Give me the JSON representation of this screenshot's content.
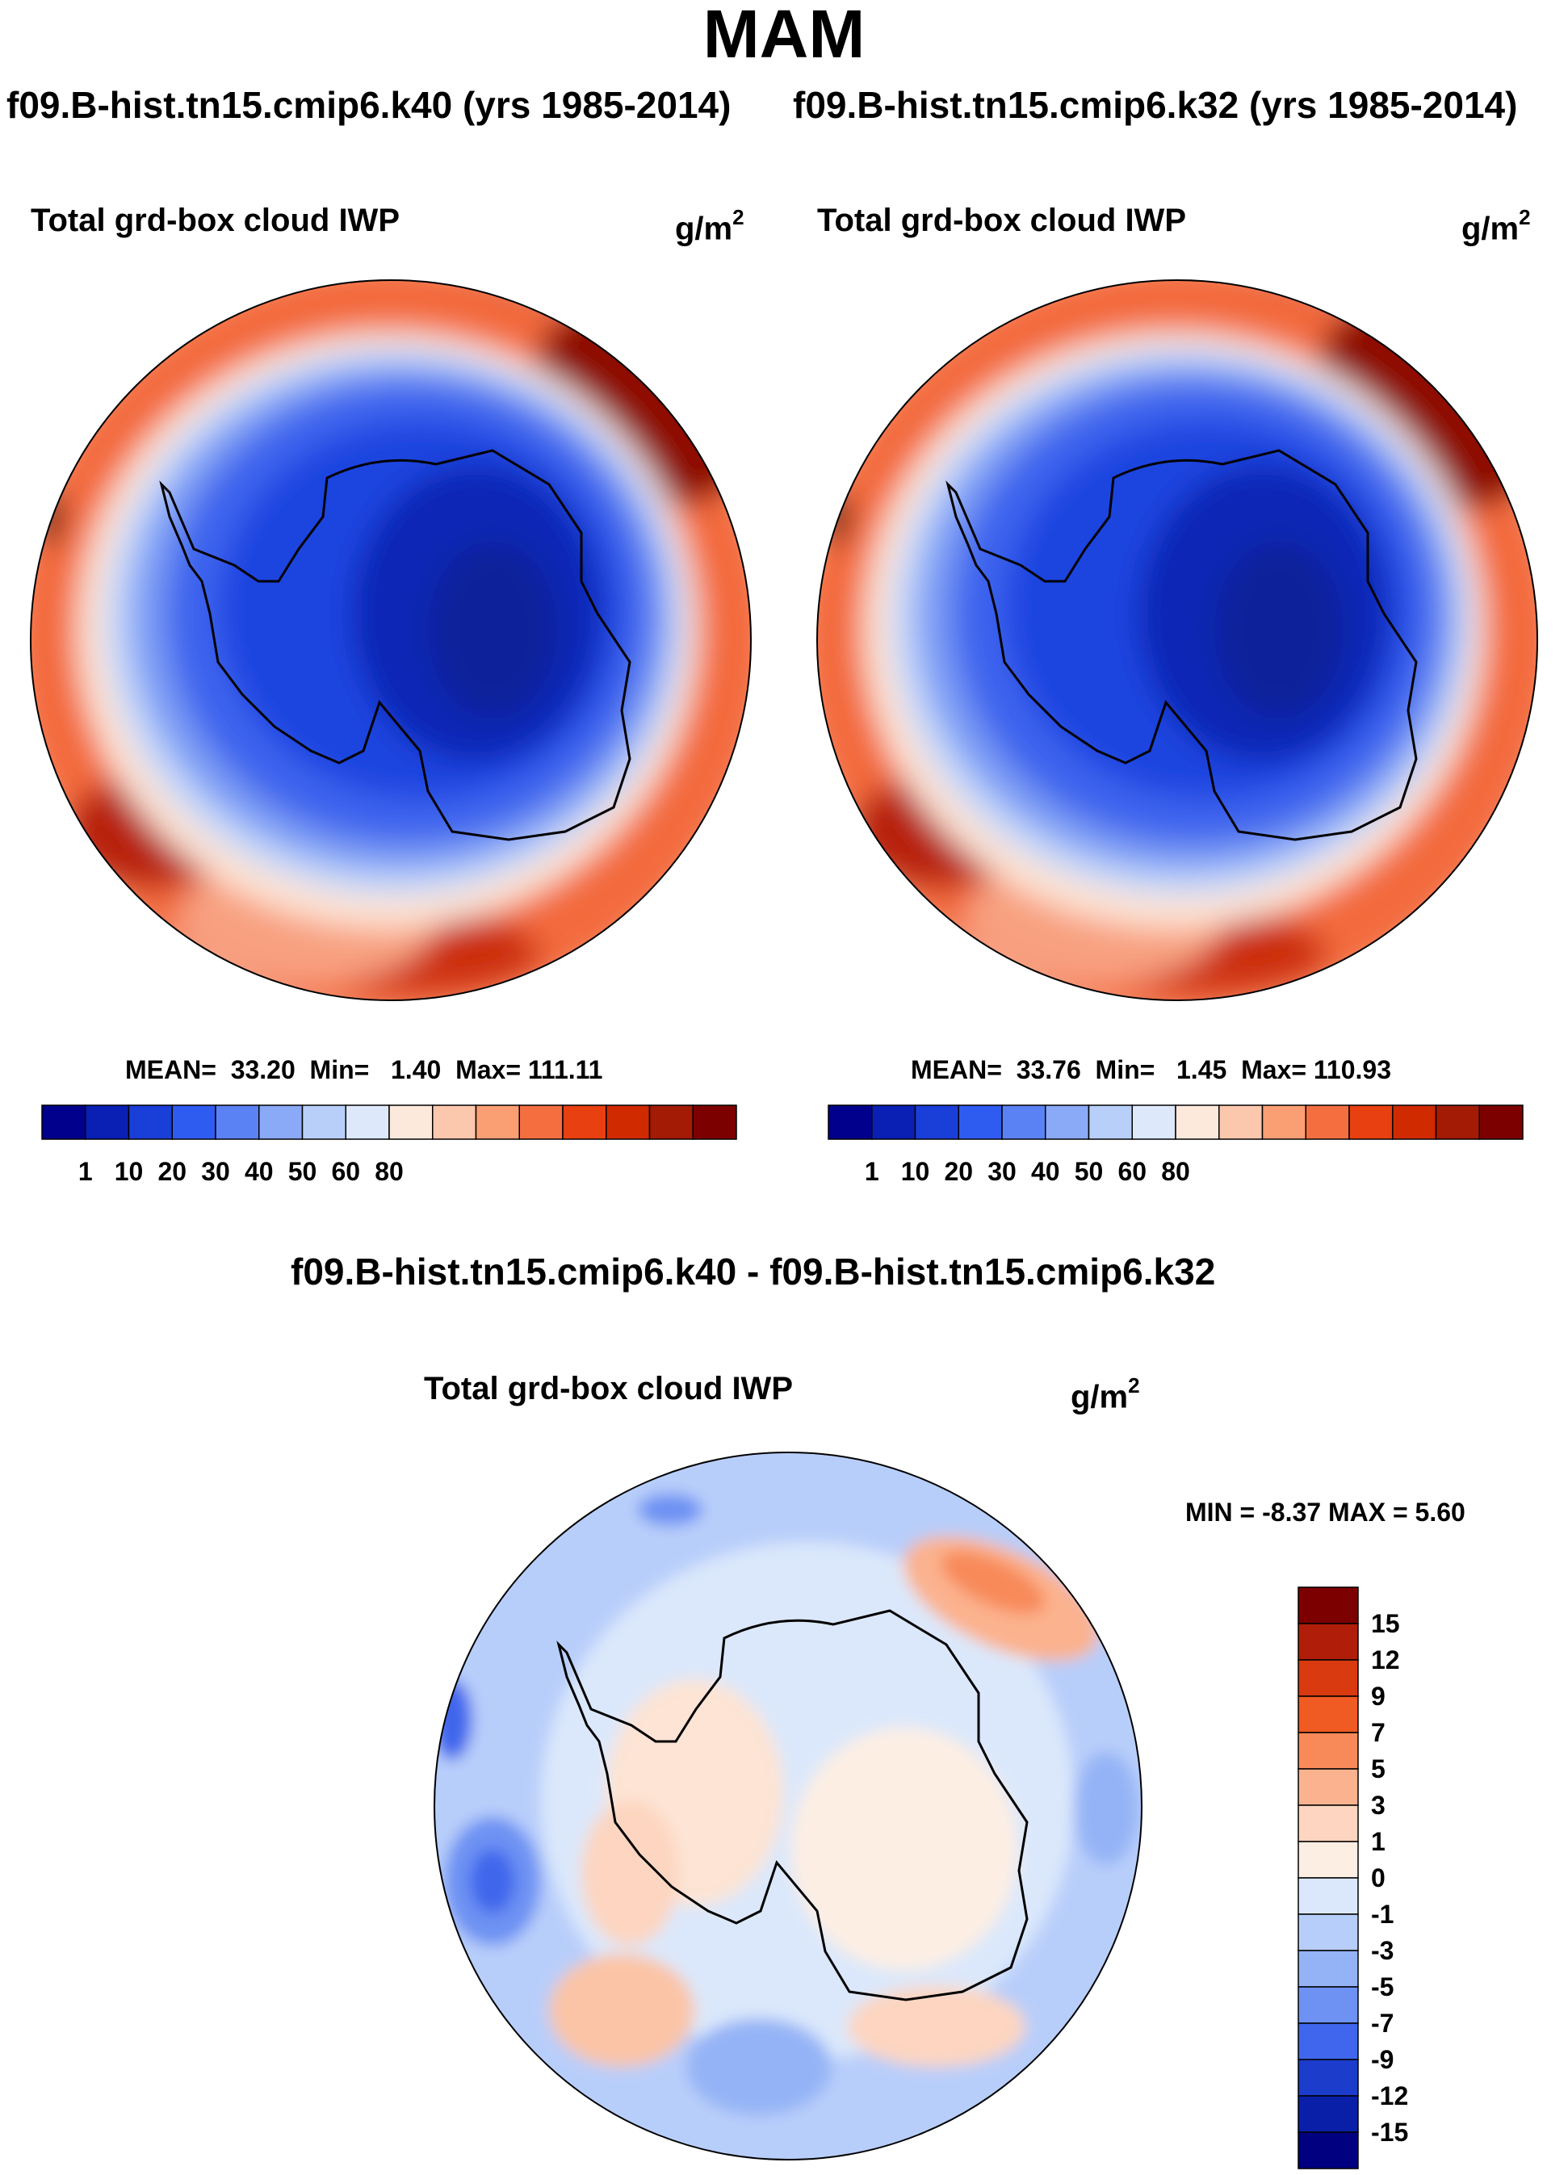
{
  "season": "MAM",
  "panels": [
    {
      "subtitle": "f09.B-hist.tn15.cmip6.k40 (yrs 1985-2014)",
      "variable": "Total grd-box cloud IWP",
      "units_base": "g/m",
      "units_exp": "2",
      "stats": {
        "mean_label": "MEAN=",
        "mean": "33.20",
        "min_label": "Min=",
        "min": "1.40",
        "max_label": "Max=",
        "max": "111.11"
      }
    },
    {
      "subtitle": "f09.B-hist.tn15.cmip6.k32 (yrs 1985-2014)",
      "variable": "Total grd-box cloud IWP",
      "units_base": "g/m",
      "units_exp": "2",
      "stats": {
        "mean_label": "MEAN=",
        "mean": "33.76",
        "min_label": "Min=",
        "min": "1.45",
        "max_label": "Max=",
        "max": "110.93"
      }
    }
  ],
  "difference": {
    "title": "f09.B-hist.tn15.cmip6.k40 - f09.B-hist.tn15.cmip6.k32",
    "variable": "Total grd-box cloud IWP",
    "units_base": "g/m",
    "units_exp": "2",
    "stats_text": "MIN =  -8.37 MAX =    5.60"
  },
  "chart_data": [
    {
      "type": "heatmap",
      "projection": "south-polar-stereographic",
      "title": "Total grd-box cloud IWP",
      "units": "g/m2",
      "mean": 33.2,
      "min": 1.4,
      "max": 111.11,
      "colorbar": {
        "orientation": "horizontal",
        "tick_labels": [
          "1",
          "10",
          "20",
          "30",
          "40",
          "50",
          "60",
          "80"
        ],
        "colors": [
          "#00008c",
          "#0a1fb4",
          "#1a3fd8",
          "#2f5cf0",
          "#5a82f5",
          "#8aaaf7",
          "#b8cffa",
          "#dde9fb",
          "#fde9dc",
          "#fcc8ad",
          "#fa9e74",
          "#f56e40",
          "#e84010",
          "#d02a00",
          "#a31a05",
          "#7d0000"
        ]
      }
    },
    {
      "type": "heatmap",
      "projection": "south-polar-stereographic",
      "title": "Total grd-box cloud IWP",
      "units": "g/m2",
      "mean": 33.76,
      "min": 1.45,
      "max": 110.93,
      "colorbar": {
        "orientation": "horizontal",
        "tick_labels": [
          "1",
          "10",
          "20",
          "30",
          "40",
          "50",
          "60",
          "80"
        ]
      }
    },
    {
      "type": "heatmap",
      "projection": "south-polar-stereographic",
      "title": "Total grd-box cloud IWP",
      "units": "g/m2",
      "min": -8.37,
      "max": 5.6,
      "colorbar": {
        "orientation": "vertical",
        "tick_labels": [
          "15",
          "12",
          "9",
          "7",
          "5",
          "3",
          "1",
          "0",
          "-1",
          "-3",
          "-5",
          "-7",
          "-9",
          "-12",
          "-15"
        ],
        "colors": [
          "#7d0000",
          "#b01e0a",
          "#d93a10",
          "#f05a23",
          "#f88a5a",
          "#fbb28e",
          "#fdd5c0",
          "#fdeee3",
          "#dbe8fb",
          "#b8cefa",
          "#94b3f6",
          "#6d92f3",
          "#3f66ec",
          "#1c3ccc",
          "#0a1fa8",
          "#000080"
        ]
      }
    }
  ]
}
